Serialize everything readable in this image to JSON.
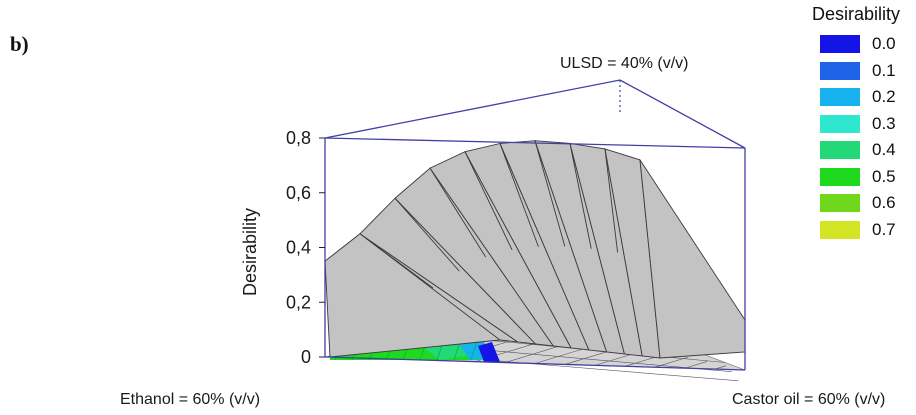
{
  "panel_label": "b)",
  "chart_data": {
    "type": "surface",
    "zlabel": "Desirability",
    "z_ticks": [
      "0",
      "0,2",
      "0,4",
      "0,6",
      "0,8"
    ],
    "zlim": [
      0,
      0.8
    ],
    "vertices": [
      {
        "label": "Ethanol = 60% (v/v)"
      },
      {
        "label": "ULSD = 40% (v/v)"
      },
      {
        "label": "Castor oil = 60% (v/v)"
      }
    ],
    "legend": {
      "title": "Desirability",
      "position": "right",
      "items": [
        {
          "label": "0.0",
          "color": "#1414e6"
        },
        {
          "label": "0.1",
          "color": "#1f63e8"
        },
        {
          "label": "0.2",
          "color": "#16b2ee"
        },
        {
          "label": "0.3",
          "color": "#2fe6cf"
        },
        {
          "label": "0.4",
          "color": "#22d877"
        },
        {
          "label": "0.5",
          "color": "#1ed91e"
        },
        {
          "label": "0.6",
          "color": "#6fd81c"
        },
        {
          "label": "0.7",
          "color": "#d2e423"
        }
      ]
    },
    "ridge_profile": [
      0.35,
      0.45,
      0.58,
      0.69,
      0.75,
      0.78,
      0.79,
      0.78,
      0.76,
      0.72
    ],
    "max_desirability": 0.79,
    "surface_color": "#c3c3c3",
    "frame_color": "#3f3fa8"
  }
}
